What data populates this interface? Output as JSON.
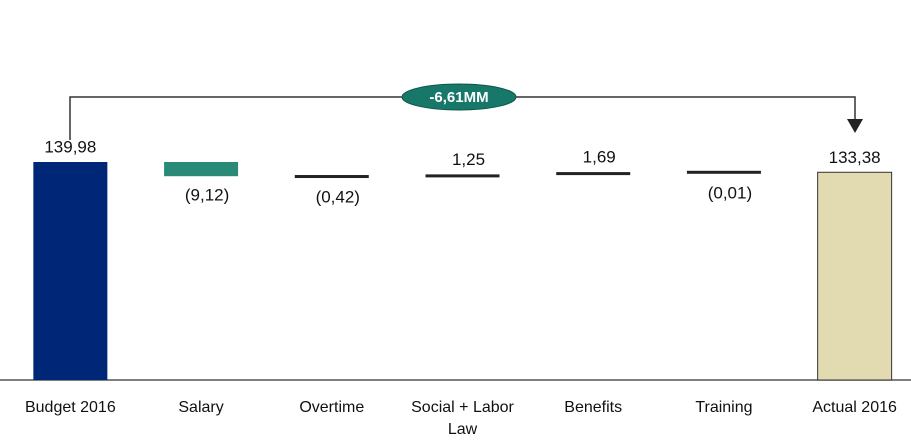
{
  "chart_data": {
    "type": "waterfall",
    "categories": [
      "Budget 2016",
      "Salary",
      "Overtime",
      "Social + Labor Law",
      "Benefits",
      "Training",
      "Actual 2016"
    ],
    "values": [
      139.98,
      -9.12,
      -0.42,
      1.25,
      1.69,
      -0.01,
      133.38
    ],
    "value_labels": [
      "139,98",
      "(9,12)",
      "(0,42)",
      "1,25",
      "1,69",
      "(0,01)",
      "133,38"
    ],
    "colors": [
      "#002677",
      "#2a8a78",
      "#222222",
      "#222222",
      "#222222",
      "#222222",
      "#e2dab0"
    ],
    "annotation": "-6,61MM"
  }
}
